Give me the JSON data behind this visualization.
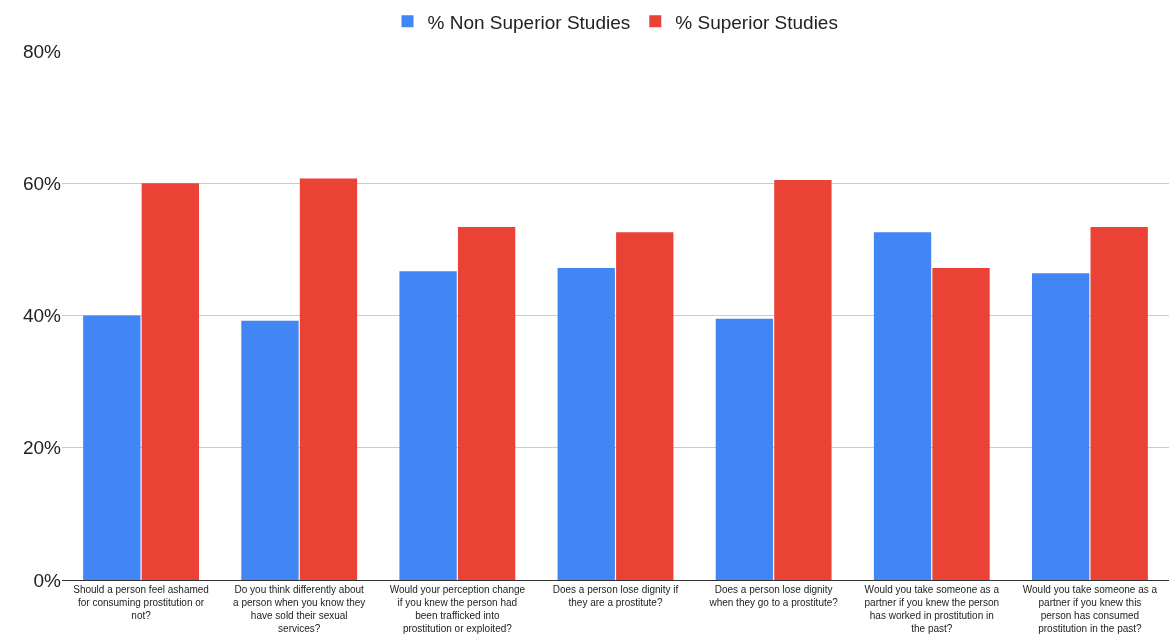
{
  "chart_data": {
    "type": "bar",
    "categories": [
      "Should a person feel ashamed for consuming prostitution or not?",
      "Do you think differently about a person when you know they have sold their sexual services?",
      "Would your perception change if you knew the person had been trafficked into prostitution or exploited?",
      "Does a person lose dignity if they are a prostitute?",
      "Does a person lose dignity when they go to a prostitute?",
      "Would you take someone as a partner if you knew the person has worked in prostitution in the past?",
      "Would you take someone as a partner if you knew this person has consumed prostitution in the past?"
    ],
    "series": [
      {
        "name": "% Non Superior Studies",
        "color": "#4285f4",
        "values": [
          40,
          39.2,
          46.7,
          47.2,
          39.5,
          52.6,
          46.4
        ]
      },
      {
        "name": "% Superior Studies",
        "color": "#ea4335",
        "values": [
          60,
          60.7,
          53.4,
          52.6,
          60.5,
          47.2,
          53.4
        ]
      }
    ],
    "ylim": [
      0,
      80
    ],
    "yticks": [
      {
        "value": 0,
        "label": "0%"
      },
      {
        "value": 20,
        "label": "20%"
      },
      {
        "value": 40,
        "label": "40%"
      },
      {
        "value": 60,
        "label": "60%"
      },
      {
        "value": 80,
        "label": "80%"
      }
    ],
    "grid": "y",
    "legend": "top"
  }
}
